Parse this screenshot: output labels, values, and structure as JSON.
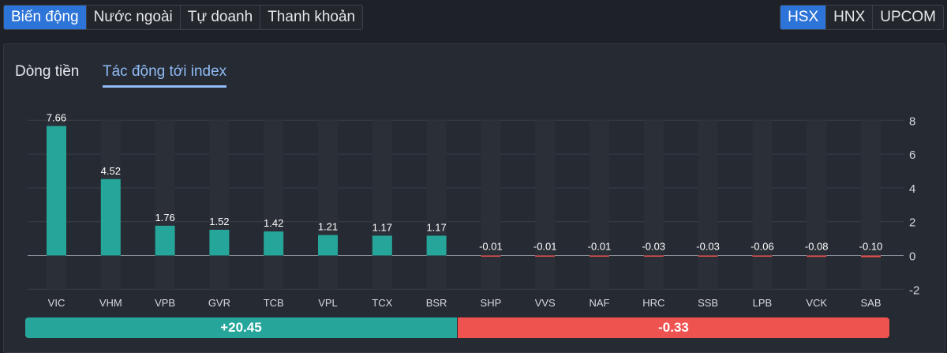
{
  "top_tabs": [
    "Biến động",
    "Nước ngoài",
    "Tự doanh",
    "Thanh khoản"
  ],
  "exchange_tabs": [
    "HSX",
    "HNX",
    "UPCOM"
  ],
  "sub_tabs": [
    "Dòng tiền",
    "Tác động tới index"
  ],
  "colors": {
    "positive": "#26a69a",
    "negative": "#ef5350",
    "accent": "#2d74d8"
  },
  "chart_data": {
    "type": "bar",
    "title": "Tác động tới index",
    "categories": [
      "VIC",
      "VHM",
      "VPB",
      "GVR",
      "TCB",
      "VPL",
      "TCX",
      "BSR",
      "SHP",
      "VVS",
      "NAF",
      "HRC",
      "SSB",
      "LPB",
      "VCK",
      "SAB"
    ],
    "values": [
      7.66,
      4.52,
      1.76,
      1.52,
      1.42,
      1.21,
      1.17,
      1.17,
      -0.01,
      -0.01,
      -0.01,
      -0.03,
      -0.03,
      -0.06,
      -0.08,
      -0.1
    ],
    "labels": [
      "7.66",
      "4.52",
      "1.76",
      "1.52",
      "1.42",
      "1.21",
      "1.17",
      "1.17",
      "-0.01",
      "-0.01",
      "-0.01",
      "-0.03",
      "-0.03",
      "-0.06",
      "-0.08",
      "-0.10"
    ],
    "yticks": [
      "8",
      "6",
      "4",
      "2",
      "0",
      "-2"
    ],
    "ylim": [
      -2,
      8
    ],
    "grid": true
  },
  "summary": {
    "positive": "+20.45",
    "negative": "-0.33"
  }
}
